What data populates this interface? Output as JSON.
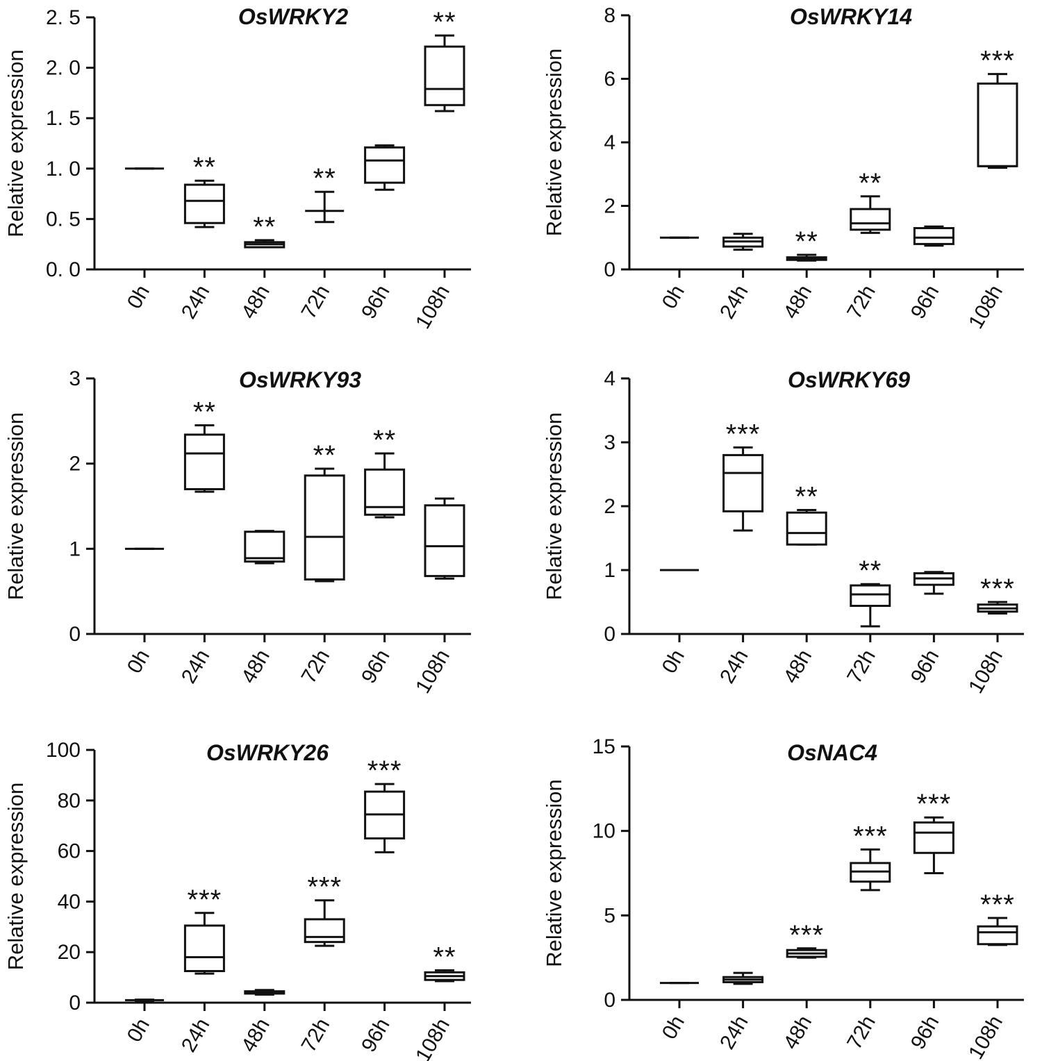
{
  "chart_data": [
    {
      "type": "boxplot",
      "title": "OsWRKY2",
      "ylabel": "Relative expression",
      "xlabel": "",
      "ylim": [
        0,
        2.5
      ],
      "yticks": [
        0,
        0.5,
        1,
        1.5,
        2,
        2.5
      ],
      "ytick_labels": [
        "0. 0",
        "0. 5",
        "1. 0",
        "1. 5",
        "2. 0",
        "2. 5"
      ],
      "categories": [
        "0h",
        "24h",
        "48h",
        "72h",
        "96h",
        "108h"
      ],
      "boxes": [
        {
          "min": 1.0,
          "q1": 1.0,
          "median": 1.0,
          "q3": 1.0,
          "max": 1.0
        },
        {
          "min": 0.42,
          "q1": 0.46,
          "median": 0.68,
          "q3": 0.84,
          "max": 0.88
        },
        {
          "min": 0.22,
          "q1": 0.22,
          "median": 0.25,
          "q3": 0.27,
          "max": 0.29
        },
        {
          "min": 0.47,
          "q1": 0.58,
          "median": 0.58,
          "q3": 0.58,
          "max": 0.77
        },
        {
          "min": 0.79,
          "q1": 0.86,
          "median": 1.08,
          "q3": 1.21,
          "max": 1.23
        },
        {
          "min": 1.57,
          "q1": 1.63,
          "median": 1.79,
          "q3": 2.21,
          "max": 2.32
        }
      ],
      "significance": [
        "",
        "**",
        "**",
        "**",
        "",
        "**"
      ]
    },
    {
      "type": "boxplot",
      "title": "OsWRKY14",
      "ylabel": "Relative expression",
      "xlabel": "",
      "ylim": [
        0,
        8
      ],
      "yticks": [
        0,
        2,
        4,
        6,
        8
      ],
      "ytick_labels": [
        "0",
        "2",
        "4",
        "6",
        "8"
      ],
      "categories": [
        "0h",
        "24h",
        "48h",
        "72h",
        "96h",
        "108h"
      ],
      "boxes": [
        {
          "min": 1.0,
          "q1": 1.0,
          "median": 1.0,
          "q3": 1.0,
          "max": 1.0
        },
        {
          "min": 0.62,
          "q1": 0.72,
          "median": 0.88,
          "q3": 1.0,
          "max": 1.12
        },
        {
          "min": 0.28,
          "q1": 0.3,
          "median": 0.34,
          "q3": 0.38,
          "max": 0.46
        },
        {
          "min": 1.15,
          "q1": 1.25,
          "median": 1.45,
          "q3": 1.9,
          "max": 2.3
        },
        {
          "min": 0.75,
          "q1": 0.8,
          "median": 1.0,
          "q3": 1.3,
          "max": 1.35
        },
        {
          "min": 3.2,
          "q1": 3.25,
          "median": 3.25,
          "q3": 5.85,
          "max": 6.15
        }
      ],
      "significance": [
        "",
        "",
        "**",
        "**",
        "",
        "***"
      ]
    },
    {
      "type": "boxplot",
      "title": "OsWRKY93",
      "ylabel": "Relative expression",
      "xlabel": "",
      "ylim": [
        0,
        3
      ],
      "yticks": [
        0,
        1,
        2,
        3
      ],
      "ytick_labels": [
        "0",
        "1",
        "2",
        "3"
      ],
      "categories": [
        "0h",
        "24h",
        "48h",
        "72h",
        "96h",
        "108h"
      ],
      "boxes": [
        {
          "min": 1.0,
          "q1": 1.0,
          "median": 1.0,
          "q3": 1.0,
          "max": 1.0
        },
        {
          "min": 1.67,
          "q1": 1.7,
          "median": 2.12,
          "q3": 2.34,
          "max": 2.45
        },
        {
          "min": 0.83,
          "q1": 0.85,
          "median": 0.89,
          "q3": 1.2,
          "max": 1.21
        },
        {
          "min": 0.62,
          "q1": 0.64,
          "median": 1.14,
          "q3": 1.86,
          "max": 1.94
        },
        {
          "min": 1.37,
          "q1": 1.4,
          "median": 1.49,
          "q3": 1.93,
          "max": 2.12
        },
        {
          "min": 0.65,
          "q1": 0.68,
          "median": 1.03,
          "q3": 1.51,
          "max": 1.59
        }
      ],
      "significance": [
        "",
        "**",
        "",
        "**",
        "**",
        ""
      ]
    },
    {
      "type": "boxplot",
      "title": "OsWRKY69",
      "ylabel": "Relative expression",
      "xlabel": "",
      "ylim": [
        0,
        4
      ],
      "yticks": [
        0,
        1,
        2,
        3,
        4
      ],
      "ytick_labels": [
        "0",
        "1",
        "2",
        "3",
        "4"
      ],
      "categories": [
        "0h",
        "24h",
        "48h",
        "72h",
        "96h",
        "108h"
      ],
      "boxes": [
        {
          "min": 1.0,
          "q1": 1.0,
          "median": 1.0,
          "q3": 1.0,
          "max": 1.0
        },
        {
          "min": 1.62,
          "q1": 1.92,
          "median": 2.52,
          "q3": 2.8,
          "max": 2.92
        },
        {
          "min": 1.4,
          "q1": 1.4,
          "median": 1.58,
          "q3": 1.9,
          "max": 1.94
        },
        {
          "min": 0.12,
          "q1": 0.44,
          "median": 0.62,
          "q3": 0.76,
          "max": 0.78
        },
        {
          "min": 0.63,
          "q1": 0.77,
          "median": 0.87,
          "q3": 0.95,
          "max": 0.97
        },
        {
          "min": 0.32,
          "q1": 0.35,
          "median": 0.4,
          "q3": 0.46,
          "max": 0.5
        }
      ],
      "significance": [
        "",
        "***",
        "**",
        "**",
        "",
        "***"
      ]
    },
    {
      "type": "boxplot",
      "title": "OsWRKY26",
      "ylabel": "Relative expression",
      "xlabel": "",
      "ylim": [
        0,
        100
      ],
      "yticks": [
        0,
        20,
        40,
        60,
        80,
        100
      ],
      "ytick_labels": [
        "0",
        "20",
        "40",
        "60",
        "80",
        "100"
      ],
      "categories": [
        "0h",
        "24h",
        "48h",
        "72h",
        "96h",
        "108h"
      ],
      "boxes": [
        {
          "min": 0.8,
          "q1": 1.0,
          "median": 1.0,
          "q3": 1.0,
          "max": 1.2
        },
        {
          "min": 11.5,
          "q1": 12.5,
          "median": 18.0,
          "q3": 30.5,
          "max": 35.5
        },
        {
          "min": 3.2,
          "q1": 3.6,
          "median": 4.0,
          "q3": 4.5,
          "max": 5.0
        },
        {
          "min": 22.5,
          "q1": 24.0,
          "median": 26.0,
          "q3": 33.0,
          "max": 40.5
        },
        {
          "min": 59.5,
          "q1": 65.0,
          "median": 74.5,
          "q3": 83.5,
          "max": 86.5
        },
        {
          "min": 8.5,
          "q1": 9.0,
          "median": 10.5,
          "q3": 12.0,
          "max": 12.8
        }
      ],
      "significance": [
        "",
        "***",
        "",
        "***",
        "***",
        "**"
      ]
    },
    {
      "type": "boxplot",
      "title": "OsNAC4",
      "ylabel": "Relative expression",
      "xlabel": "",
      "ylim": [
        0,
        15
      ],
      "yticks": [
        0,
        5,
        10,
        15
      ],
      "ytick_labels": [
        "0",
        "5",
        "10",
        "15"
      ],
      "categories": [
        "0h",
        "24h",
        "48h",
        "72h",
        "96h",
        "108h"
      ],
      "boxes": [
        {
          "min": 1.0,
          "q1": 1.0,
          "median": 1.0,
          "q3": 1.0,
          "max": 1.0
        },
        {
          "min": 0.95,
          "q1": 1.05,
          "median": 1.2,
          "q3": 1.35,
          "max": 1.6
        },
        {
          "min": 2.5,
          "q1": 2.55,
          "median": 2.75,
          "q3": 2.95,
          "max": 3.05
        },
        {
          "min": 6.5,
          "q1": 7.0,
          "median": 7.6,
          "q3": 8.1,
          "max": 8.9
        },
        {
          "min": 7.5,
          "q1": 8.7,
          "median": 9.9,
          "q3": 10.5,
          "max": 10.8
        },
        {
          "min": 3.25,
          "q1": 3.3,
          "median": 4.0,
          "q3": 4.35,
          "max": 4.85
        }
      ],
      "significance": [
        "",
        "",
        "***",
        "***",
        "***",
        "***"
      ]
    }
  ]
}
